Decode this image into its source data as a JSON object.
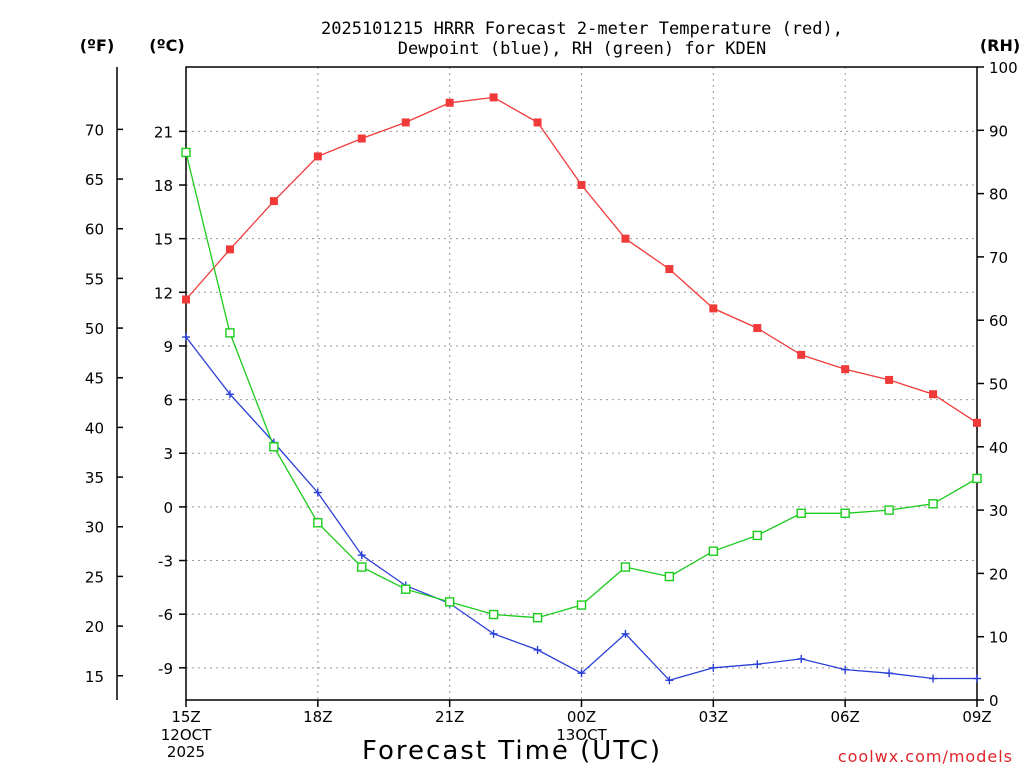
{
  "chart_data": {
    "type": "line",
    "title_line1": "2025101215 HRRR Forecast 2-meter Temperature (red),",
    "title_line2": "Dewpoint (blue), RH (green) for KDEN",
    "xlabel": "Forecast Time (UTC)",
    "credit": "coolwx.com/models",
    "units": {
      "f": "(ºF)",
      "c": "(ºC)",
      "rh": "(RH)"
    },
    "colors": {
      "temp": "#f03a3a",
      "dew": "#2a3fd8",
      "rh": "#1ccc1c"
    },
    "x_hours": [
      0,
      1,
      2,
      3,
      4,
      5,
      6,
      7,
      8,
      9,
      10,
      11,
      12,
      13,
      14,
      15,
      16,
      17,
      18
    ],
    "xlim": [
      0,
      18
    ],
    "x_ticks": [
      {
        "h": 0,
        "label": "15Z",
        "sub1": "12OCT",
        "sub2": "2025"
      },
      {
        "h": 3,
        "label": "18Z",
        "sub1": "",
        "sub2": ""
      },
      {
        "h": 6,
        "label": "21Z",
        "sub1": "",
        "sub2": ""
      },
      {
        "h": 9,
        "label": "00Z",
        "sub1": "13OCT",
        "sub2": ""
      },
      {
        "h": 12,
        "label": "03Z",
        "sub1": "",
        "sub2": ""
      },
      {
        "h": 15,
        "label": "06Z",
        "sub1": "",
        "sub2": ""
      },
      {
        "h": 18,
        "label": "09Z",
        "sub1": "",
        "sub2": ""
      }
    ],
    "ylim_c": [
      -10.8,
      24.6
    ],
    "ylim_rh": [
      0,
      100
    ],
    "y_ticks_c": [
      "-9",
      "-6",
      "-3",
      "0",
      "3",
      "6",
      "9",
      "12",
      "15",
      "18",
      "21"
    ],
    "y_ticks_f": [
      "15",
      "20",
      "25",
      "30",
      "35",
      "40",
      "45",
      "50",
      "55",
      "60",
      "65",
      "70"
    ],
    "y_ticks_rh": [
      "0",
      "10",
      "20",
      "30",
      "40",
      "50",
      "60",
      "70",
      "80",
      "90",
      "100"
    ],
    "series": [
      {
        "name": "Temperature",
        "unit": "C",
        "values": [
          11.6,
          14.4,
          17.1,
          19.6,
          20.6,
          21.5,
          22.6,
          22.9,
          21.5,
          18.0,
          15.0,
          13.3,
          11.1,
          10.0,
          8.5,
          7.7,
          7.1,
          6.3,
          4.7
        ]
      },
      {
        "name": "Dewpoint",
        "unit": "C",
        "values": [
          9.5,
          6.3,
          3.6,
          0.8,
          -2.7,
          -4.4,
          -5.4,
          -7.1,
          -8.0,
          -9.3,
          -7.1,
          -9.7,
          -9.0,
          -8.8,
          -8.5,
          -9.1,
          -9.3,
          -9.6,
          -9.6
        ]
      },
      {
        "name": "RH",
        "unit": "%",
        "values": [
          86.5,
          58,
          40,
          28,
          21,
          17.5,
          15.5,
          13.5,
          13,
          15,
          21,
          19.5,
          23.5,
          26,
          29.5,
          29.5,
          30,
          31,
          35
        ]
      }
    ]
  }
}
